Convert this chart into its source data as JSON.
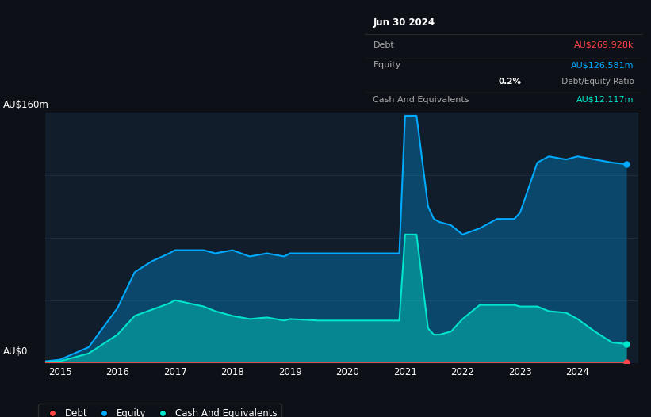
{
  "background_color": "#0d1117",
  "plot_bg_color": "#111d2b",
  "ylabel_top": "AU$160m",
  "ylabel_bottom": "AU$0",
  "xlim": [
    2014.75,
    2025.05
  ],
  "ylim": [
    0,
    160
  ],
  "x_ticks": [
    2015,
    2016,
    2017,
    2018,
    2019,
    2020,
    2021,
    2022,
    2023,
    2024
  ],
  "grid_color": "#1e2d3d",
  "equity_color": "#00aaff",
  "cash_color": "#00e5cc",
  "debt_color": "#ff4444",
  "equity_data_x": [
    2014.5,
    2015.0,
    2015.5,
    2016.0,
    2016.3,
    2016.6,
    2016.9,
    2017.0,
    2017.5,
    2017.7,
    2018.0,
    2018.3,
    2018.6,
    2018.9,
    2019.0,
    2019.5,
    2019.9,
    2020.0,
    2020.5,
    2020.9,
    2021.0,
    2021.1,
    2021.2,
    2021.4,
    2021.5,
    2021.6,
    2021.8,
    2022.0,
    2022.3,
    2022.6,
    2022.9,
    2023.0,
    2023.3,
    2023.5,
    2023.8,
    2024.0,
    2024.3,
    2024.6,
    2024.85
  ],
  "equity_data_y": [
    0,
    2,
    10,
    35,
    58,
    65,
    70,
    72,
    72,
    70,
    72,
    68,
    70,
    68,
    70,
    70,
    70,
    70,
    70,
    70,
    158,
    158,
    158,
    100,
    92,
    90,
    88,
    82,
    86,
    92,
    92,
    96,
    128,
    132,
    130,
    132,
    130,
    128,
    127
  ],
  "cash_data_x": [
    2014.5,
    2015.0,
    2015.5,
    2016.0,
    2016.3,
    2016.6,
    2016.9,
    2017.0,
    2017.5,
    2017.7,
    2018.0,
    2018.3,
    2018.6,
    2018.9,
    2019.0,
    2019.5,
    2019.9,
    2020.0,
    2020.5,
    2020.9,
    2021.0,
    2021.1,
    2021.2,
    2021.4,
    2021.5,
    2021.6,
    2021.8,
    2022.0,
    2022.3,
    2022.6,
    2022.9,
    2023.0,
    2023.3,
    2023.5,
    2023.8,
    2024.0,
    2024.3,
    2024.6,
    2024.85
  ],
  "cash_data_y": [
    0,
    1,
    6,
    18,
    30,
    34,
    38,
    40,
    36,
    33,
    30,
    28,
    29,
    27,
    28,
    27,
    27,
    27,
    27,
    27,
    82,
    82,
    82,
    22,
    18,
    18,
    20,
    28,
    37,
    37,
    37,
    36,
    36,
    33,
    32,
    28,
    20,
    13,
    12
  ],
  "debt_data_x": [
    2014.5,
    2015.0,
    2016.0,
    2017.0,
    2018.0,
    2019.0,
    2020.0,
    2021.0,
    2022.0,
    2023.0,
    2024.0,
    2024.85
  ],
  "debt_data_y": [
    0,
    0.3,
    0.3,
    0.3,
    0.3,
    0.3,
    0.3,
    0.3,
    0.3,
    0.3,
    0.3,
    0.3
  ],
  "tooltip_title": "Jun 30 2024",
  "tooltip_debt_label": "Debt",
  "tooltip_debt_value": "AU$269.928k",
  "tooltip_equity_label": "Equity",
  "tooltip_equity_value": "AU$126.581m",
  "tooltip_ratio_bold": "0.2%",
  "tooltip_ratio_text": " Debt/Equity Ratio",
  "tooltip_cash_label": "Cash And Equivalents",
  "tooltip_cash_value": "AU$12.117m",
  "legend_labels": [
    "Debt",
    "Equity",
    "Cash And Equivalents"
  ],
  "legend_colors": [
    "#ff4444",
    "#00aaff",
    "#00e5cc"
  ]
}
